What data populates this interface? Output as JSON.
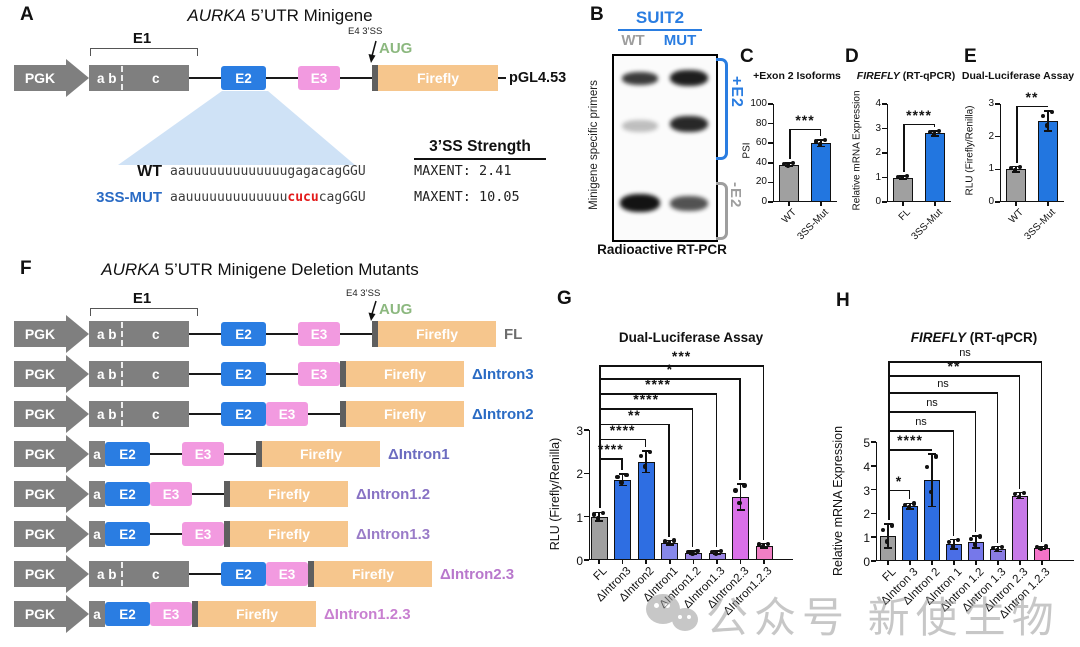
{
  "panelA": {
    "label": "A",
    "title_em": "AURKA",
    "title_rest": " 5’UTR Minigene",
    "construct": {
      "promoter": "PGK",
      "e1": "E1",
      "exon_ab": "a b",
      "exon_c": "c",
      "exon_a": "a",
      "e2": "E2",
      "e3": "E3",
      "e4ss": "E4 3’SS",
      "aug": "AUG",
      "firefly": "Firefly",
      "vector": "pGL4.53"
    },
    "splice": {
      "header": "3’SS Strength",
      "wt_name": "WT",
      "wt_pre": "aauuuuuuuuuuuuu",
      "wt_mid": "gaga",
      "wt_post": "cagGGU",
      "wt_maxent": "MAXENT: 2.41",
      "mut_name": "3SS-MUT",
      "mut_pre": "aauuuuuuuuuuuuu",
      "mut_mid": "cucu",
      "mut_post": "cagGGU",
      "mut_maxent": "MAXENT: 10.05"
    }
  },
  "panelB": {
    "label": "B",
    "cell_line": "SUIT2",
    "lane_wt": "WT",
    "lane_mut": "MUT",
    "side_label": "Minigene specific primers",
    "plus_e2": "+E2",
    "minus_e2": "-E2",
    "caption": "Radioactive RT-PCR"
  },
  "panelF": {
    "label": "F",
    "title_em": "AURKA",
    "title_rest": " 5’UTR Minigene Deletion Mutants",
    "e1": "E1",
    "e4ss": "E4 3’SS",
    "aug": "AUG",
    "promoter": "PGK",
    "exon_ab": "a b",
    "exon_c": "c",
    "exon_a": "a",
    "e2": "E2",
    "e3": "E3",
    "firefly": "Firefly",
    "rows": [
      {
        "name": "FL",
        "color": "#6d6d6d",
        "segments": [
          "abc",
          "gap",
          "E2",
          "gap",
          "E3",
          "gap",
          "tick",
          "ff"
        ]
      },
      {
        "name": "ΔIntron3",
        "color": "#2a6bc4",
        "segments": [
          "abc",
          "gap",
          "E2",
          "gap",
          "E3",
          "tick",
          "ff"
        ]
      },
      {
        "name": "ΔIntron2",
        "color": "#2a6bc4",
        "segments": [
          "abc",
          "gap",
          "E2",
          "E3",
          "gap",
          "tick",
          "ff"
        ]
      },
      {
        "name": "ΔIntron1",
        "color": "#6c6cc0",
        "segments": [
          "a",
          "E2",
          "gap",
          "E3",
          "gap",
          "tick",
          "ff"
        ]
      },
      {
        "name": "ΔIntron1.2",
        "color": "#8872c4",
        "segments": [
          "a",
          "E2",
          "E3",
          "gap",
          "tick",
          "ff"
        ]
      },
      {
        "name": "ΔIntron1.3",
        "color": "#9a7cc8",
        "segments": [
          "a",
          "E2",
          "gap",
          "E3",
          "tick",
          "ff"
        ]
      },
      {
        "name": "ΔIntron2.3",
        "color": "#b878cc",
        "segments": [
          "abc",
          "gap",
          "E2",
          "E3",
          "tick",
          "ff"
        ]
      },
      {
        "name": "ΔIntron1.2.3",
        "color": "#c87fd0",
        "segments": [
          "a",
          "E2",
          "E3",
          "tick",
          "ff"
        ]
      }
    ]
  },
  "watermark": {
    "text": "公众号 新使生物"
  },
  "chart_data": [
    {
      "id": "C",
      "letter": "C",
      "type": "bar",
      "title": "+Exon 2 Isoforms",
      "ylabel": "PSI",
      "ylim": [
        0,
        100
      ],
      "yticks": [
        0,
        20,
        40,
        60,
        80,
        100
      ],
      "categories": [
        "WT",
        "3SS-Mut"
      ],
      "values": [
        38,
        60
      ],
      "errors": [
        2,
        3.5
      ],
      "colors": [
        "#a0a0a0",
        "#2276e0"
      ],
      "significance": [
        {
          "from": 0,
          "to": 1,
          "label": "***",
          "y": 75
        }
      ]
    },
    {
      "id": "D",
      "letter": "D",
      "type": "bar",
      "title_em": "FIREFLY",
      "title": " (RT-qPCR)",
      "ylabel": "Relative mRNA Expression",
      "ylim": [
        0,
        4
      ],
      "yticks": [
        0,
        1,
        2,
        3,
        4
      ],
      "categories": [
        "FL",
        "3SS-Mut"
      ],
      "values": [
        1.0,
        2.8
      ],
      "errors": [
        0.06,
        0.1
      ],
      "colors": [
        "#a0a0a0",
        "#2276e0"
      ],
      "significance": [
        {
          "from": 0,
          "to": 1,
          "label": "****",
          "y": 3.2
        }
      ]
    },
    {
      "id": "E",
      "letter": "E",
      "type": "bar",
      "title": "Dual-Luciferase Assay",
      "ylabel": "RLU (Firefly/Renilla)",
      "ylim": [
        0,
        3
      ],
      "yticks": [
        0,
        1,
        2,
        3
      ],
      "categories": [
        "WT",
        "3SS-Mut"
      ],
      "values": [
        1.0,
        2.48
      ],
      "errors": [
        0.08,
        0.3
      ],
      "colors": [
        "#a0a0a0",
        "#2276e0"
      ],
      "significance": [
        {
          "from": 0,
          "to": 1,
          "label": "**",
          "y": 2.94
        }
      ]
    },
    {
      "id": "G",
      "letter": "G",
      "type": "bar",
      "title": "Dual-Luciferase Assay",
      "ylabel": "RLU (Firefly/Renilla)",
      "ylim": [
        0,
        3
      ],
      "yticks": [
        0,
        1,
        2,
        3
      ],
      "categories": [
        "FL",
        "ΔIntron3",
        "ΔIntron2",
        "ΔIntron1",
        "ΔIntron1.2",
        "ΔIntron1.3",
        "ΔIntron2.3",
        "ΔIntron1.2.3"
      ],
      "values": [
        1.0,
        1.85,
        2.27,
        0.4,
        0.17,
        0.17,
        1.45,
        0.33
      ],
      "errors": [
        0.1,
        0.13,
        0.25,
        0.05,
        0.04,
        0.04,
        0.3,
        0.05
      ],
      "colors": [
        "#a0a0a0",
        "#2e6ee2",
        "#2e6ee2",
        "#8688ea",
        "#9a84e4",
        "#9a84e4",
        "#da70e8",
        "#f07fc4"
      ],
      "significance": [
        {
          "from": 0,
          "to": 1,
          "label": "****",
          "y": 2.35
        },
        {
          "from": 0,
          "to": 2,
          "label": "****",
          "y": 2.8
        },
        {
          "from": 0,
          "to": 3,
          "label": "**",
          "y": 3.15
        },
        {
          "from": 0,
          "to": 4,
          "label": "****",
          "y": 3.5
        },
        {
          "from": 0,
          "to": 5,
          "label": "****",
          "y": 3.85
        },
        {
          "from": 0,
          "to": 6,
          "label": "*",
          "y": 4.2
        },
        {
          "from": 0,
          "to": 7,
          "label": "***",
          "y": 4.5
        }
      ]
    },
    {
      "id": "H",
      "letter": "H",
      "type": "bar",
      "title_em": "FIREFLY",
      "title": " (RT-qPCR)",
      "ylabel": "Relative mRNA Expression",
      "ylim": [
        0,
        5
      ],
      "yticks": [
        0,
        1,
        2,
        3,
        4,
        5
      ],
      "categories": [
        "FL",
        "ΔIntron 3",
        "ΔIntron 2",
        "ΔIntron 1",
        "ΔIntron 1.2",
        "ΔIntron 1.3",
        "ΔIntron 2.3",
        "ΔIntron 1.2.3"
      ],
      "values": [
        1.05,
        2.3,
        3.4,
        0.7,
        0.8,
        0.5,
        2.75,
        0.55
      ],
      "errors": [
        0.5,
        0.12,
        1.1,
        0.2,
        0.25,
        0.1,
        0.12,
        0.06
      ],
      "colors": [
        "#a0a0a0",
        "#2e6ee2",
        "#2e6ee2",
        "#4a6ee6",
        "#7678ea",
        "#8a7ce2",
        "#c87ae8",
        "#f473c8"
      ],
      "significance": [
        {
          "from": 0,
          "to": 1,
          "label": "*",
          "y": 3.0
        },
        {
          "from": 0,
          "to": 2,
          "label": "****",
          "y": 4.7
        },
        {
          "from": 0,
          "to": 3,
          "label": "ns",
          "y": 5.5
        },
        {
          "from": 0,
          "to": 4,
          "label": "ns",
          "y": 6.3
        },
        {
          "from": 0,
          "to": 5,
          "label": "ns",
          "y": 7.1
        },
        {
          "from": 0,
          "to": 6,
          "label": "**",
          "y": 7.8
        },
        {
          "from": 0,
          "to": 7,
          "label": "ns",
          "y": 8.4
        }
      ]
    }
  ]
}
